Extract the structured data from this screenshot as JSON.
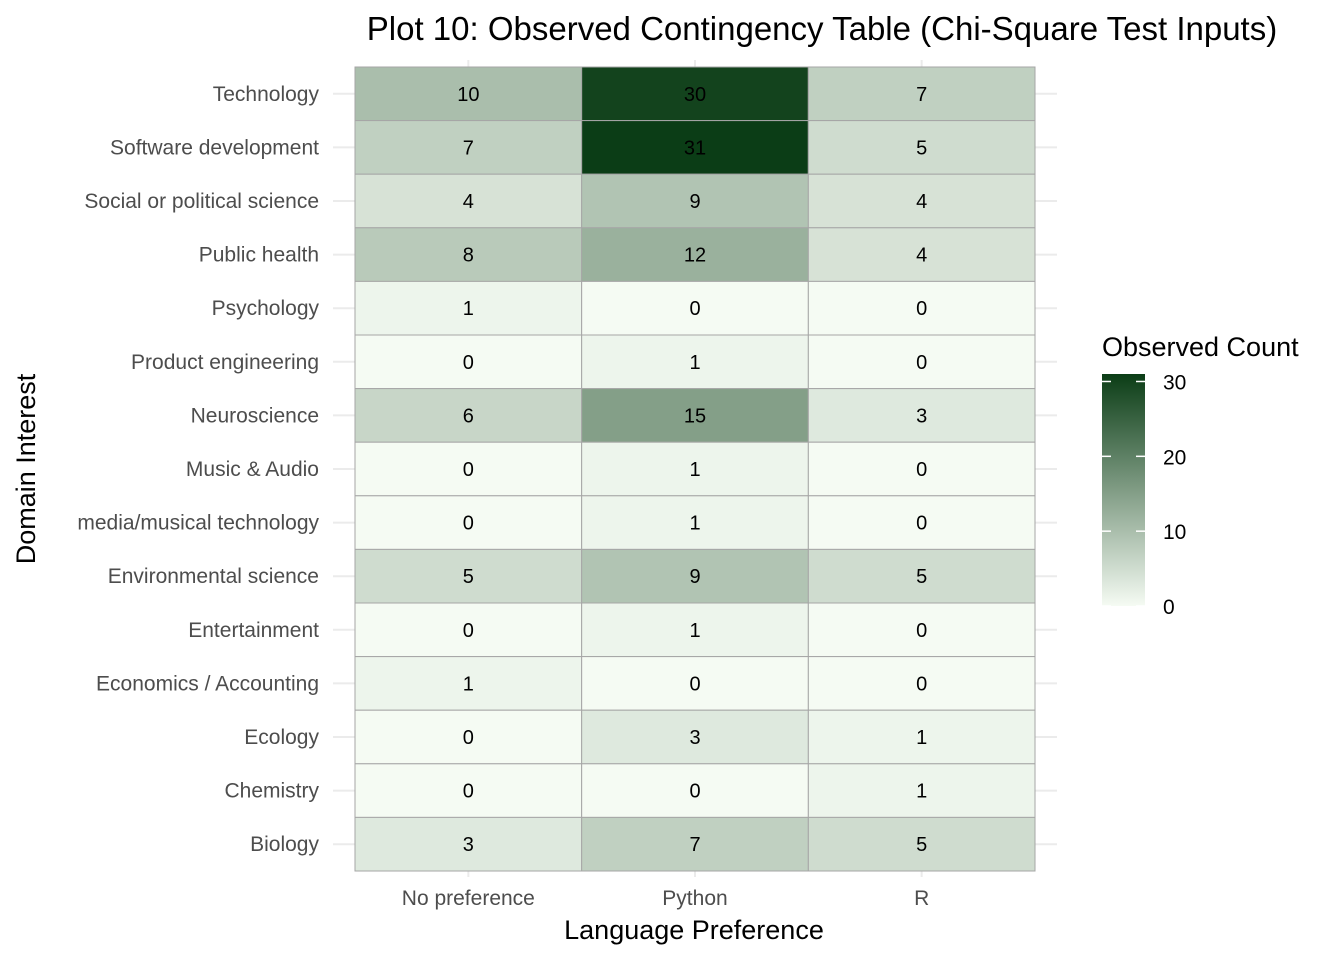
{
  "chart_data": {
    "type": "heatmap",
    "title": "Plot 10: Observed Contingency Table (Chi-Square Test Inputs)",
    "xlabel": "Language Preference",
    "ylabel": "Domain Interest",
    "x_categories": [
      "No preference",
      "Python",
      "R"
    ],
    "y_categories": [
      "Technology",
      "Software development",
      "Social or political science",
      "Public health",
      "Psychology",
      "Product engineering",
      "Neuroscience",
      "Music & Audio",
      "media/musical technology",
      "Environmental science",
      "Entertainment",
      "Economics / Accounting",
      "Ecology",
      "Chemistry",
      "Biology"
    ],
    "values": [
      [
        10,
        30,
        7
      ],
      [
        7,
        31,
        5
      ],
      [
        4,
        9,
        4
      ],
      [
        8,
        12,
        4
      ],
      [
        1,
        0,
        0
      ],
      [
        0,
        1,
        0
      ],
      [
        6,
        15,
        3
      ],
      [
        0,
        1,
        0
      ],
      [
        0,
        1,
        0
      ],
      [
        5,
        9,
        5
      ],
      [
        0,
        1,
        0
      ],
      [
        1,
        0,
        0
      ],
      [
        0,
        3,
        1
      ],
      [
        0,
        0,
        1
      ],
      [
        3,
        7,
        5
      ]
    ],
    "legend": {
      "title": "Observed Count",
      "ticks": [
        0,
        10,
        20,
        30
      ],
      "range": [
        0,
        31
      ],
      "low_color": "#f5fbf3",
      "high_color": "#0b3d16",
      "placement": "right"
    },
    "cell_border_color": "#a6a6a6",
    "grid": true
  }
}
